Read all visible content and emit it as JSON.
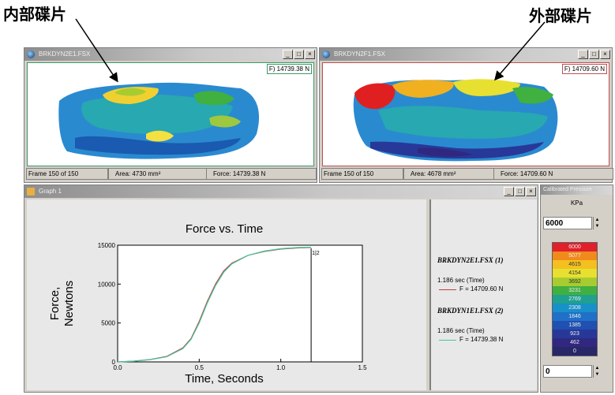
{
  "annotations": {
    "inner_label": "内部碟片",
    "outer_label": "外部碟片"
  },
  "left_window": {
    "title": "BRKDYN2E1.FSX",
    "force_readout": "F) 14739.38 N",
    "status": {
      "frame": "Frame 150 of 150",
      "area": "Area: 4730 mm²",
      "force": "Force: 14739.38 N"
    }
  },
  "right_window": {
    "title": "BRKDYN2F1.FSX",
    "force_readout": "F) 14709.60 N",
    "status": {
      "frame": "Frame 150 of 150",
      "area": "Area: 4678 mm²",
      "force": "Force: 14709.60 N"
    }
  },
  "graph_window": {
    "title": "Graph 1",
    "legend": {
      "file1": "BRKDYN2E1.FSX (1)",
      "file1_time": "1.186 sec (Time)",
      "file1_force": "F = 14709.60 N",
      "file2": "BRKDYN1E1.FSX (2)",
      "file2_time": "1.186 sec (Time)",
      "file2_force": "F = 14739.38 N"
    }
  },
  "calibrated_pressure": {
    "title": "Calibrated Pressure",
    "unit": "KPa",
    "max_value": "6000",
    "min_value": "0",
    "scale_labels": [
      "6000",
      "5077",
      "4615",
      "4154",
      "3692",
      "3231",
      "2769",
      "2308",
      "1846",
      "1385",
      "923",
      "462",
      "0"
    ],
    "scale_colors": [
      "#e0202a",
      "#f08a1c",
      "#f4c020",
      "#e8e030",
      "#a8cc30",
      "#40b040",
      "#20a090",
      "#1890c8",
      "#2070c8",
      "#2050b0",
      "#283898",
      "#302880",
      "#282868"
    ]
  },
  "chart_data": {
    "type": "line",
    "title": "Force vs. Time",
    "xlabel": "Time, Seconds",
    "ylabel": "Force, Newtons",
    "xlim": [
      0,
      1.5
    ],
    "ylim": [
      0,
      15000
    ],
    "xticks": [
      "0.0",
      "0.5",
      "1.0",
      "1.5"
    ],
    "yticks": [
      "0",
      "5000",
      "10000",
      "15000"
    ],
    "cursor_x": 1.186,
    "cursor_label": "1|2",
    "series": [
      {
        "color": "#c04040",
        "x": [
          0,
          0.1,
          0.2,
          0.3,
          0.4,
          0.45,
          0.5,
          0.55,
          0.6,
          0.65,
          0.7,
          0.8,
          0.9,
          1.0,
          1.1,
          1.186
        ],
        "values": [
          0,
          100,
          300,
          700,
          1800,
          3000,
          5200,
          7800,
          10000,
          11700,
          12700,
          13700,
          14200,
          14500,
          14650,
          14709.6
        ]
      },
      {
        "color": "#40c8a0",
        "x": [
          0,
          0.1,
          0.2,
          0.3,
          0.4,
          0.45,
          0.5,
          0.55,
          0.6,
          0.65,
          0.7,
          0.8,
          0.9,
          1.0,
          1.1,
          1.186
        ],
        "values": [
          0,
          90,
          280,
          650,
          1700,
          2900,
          5000,
          7600,
          9800,
          11500,
          12600,
          13700,
          14250,
          14550,
          14700,
          14739.38
        ]
      }
    ]
  }
}
